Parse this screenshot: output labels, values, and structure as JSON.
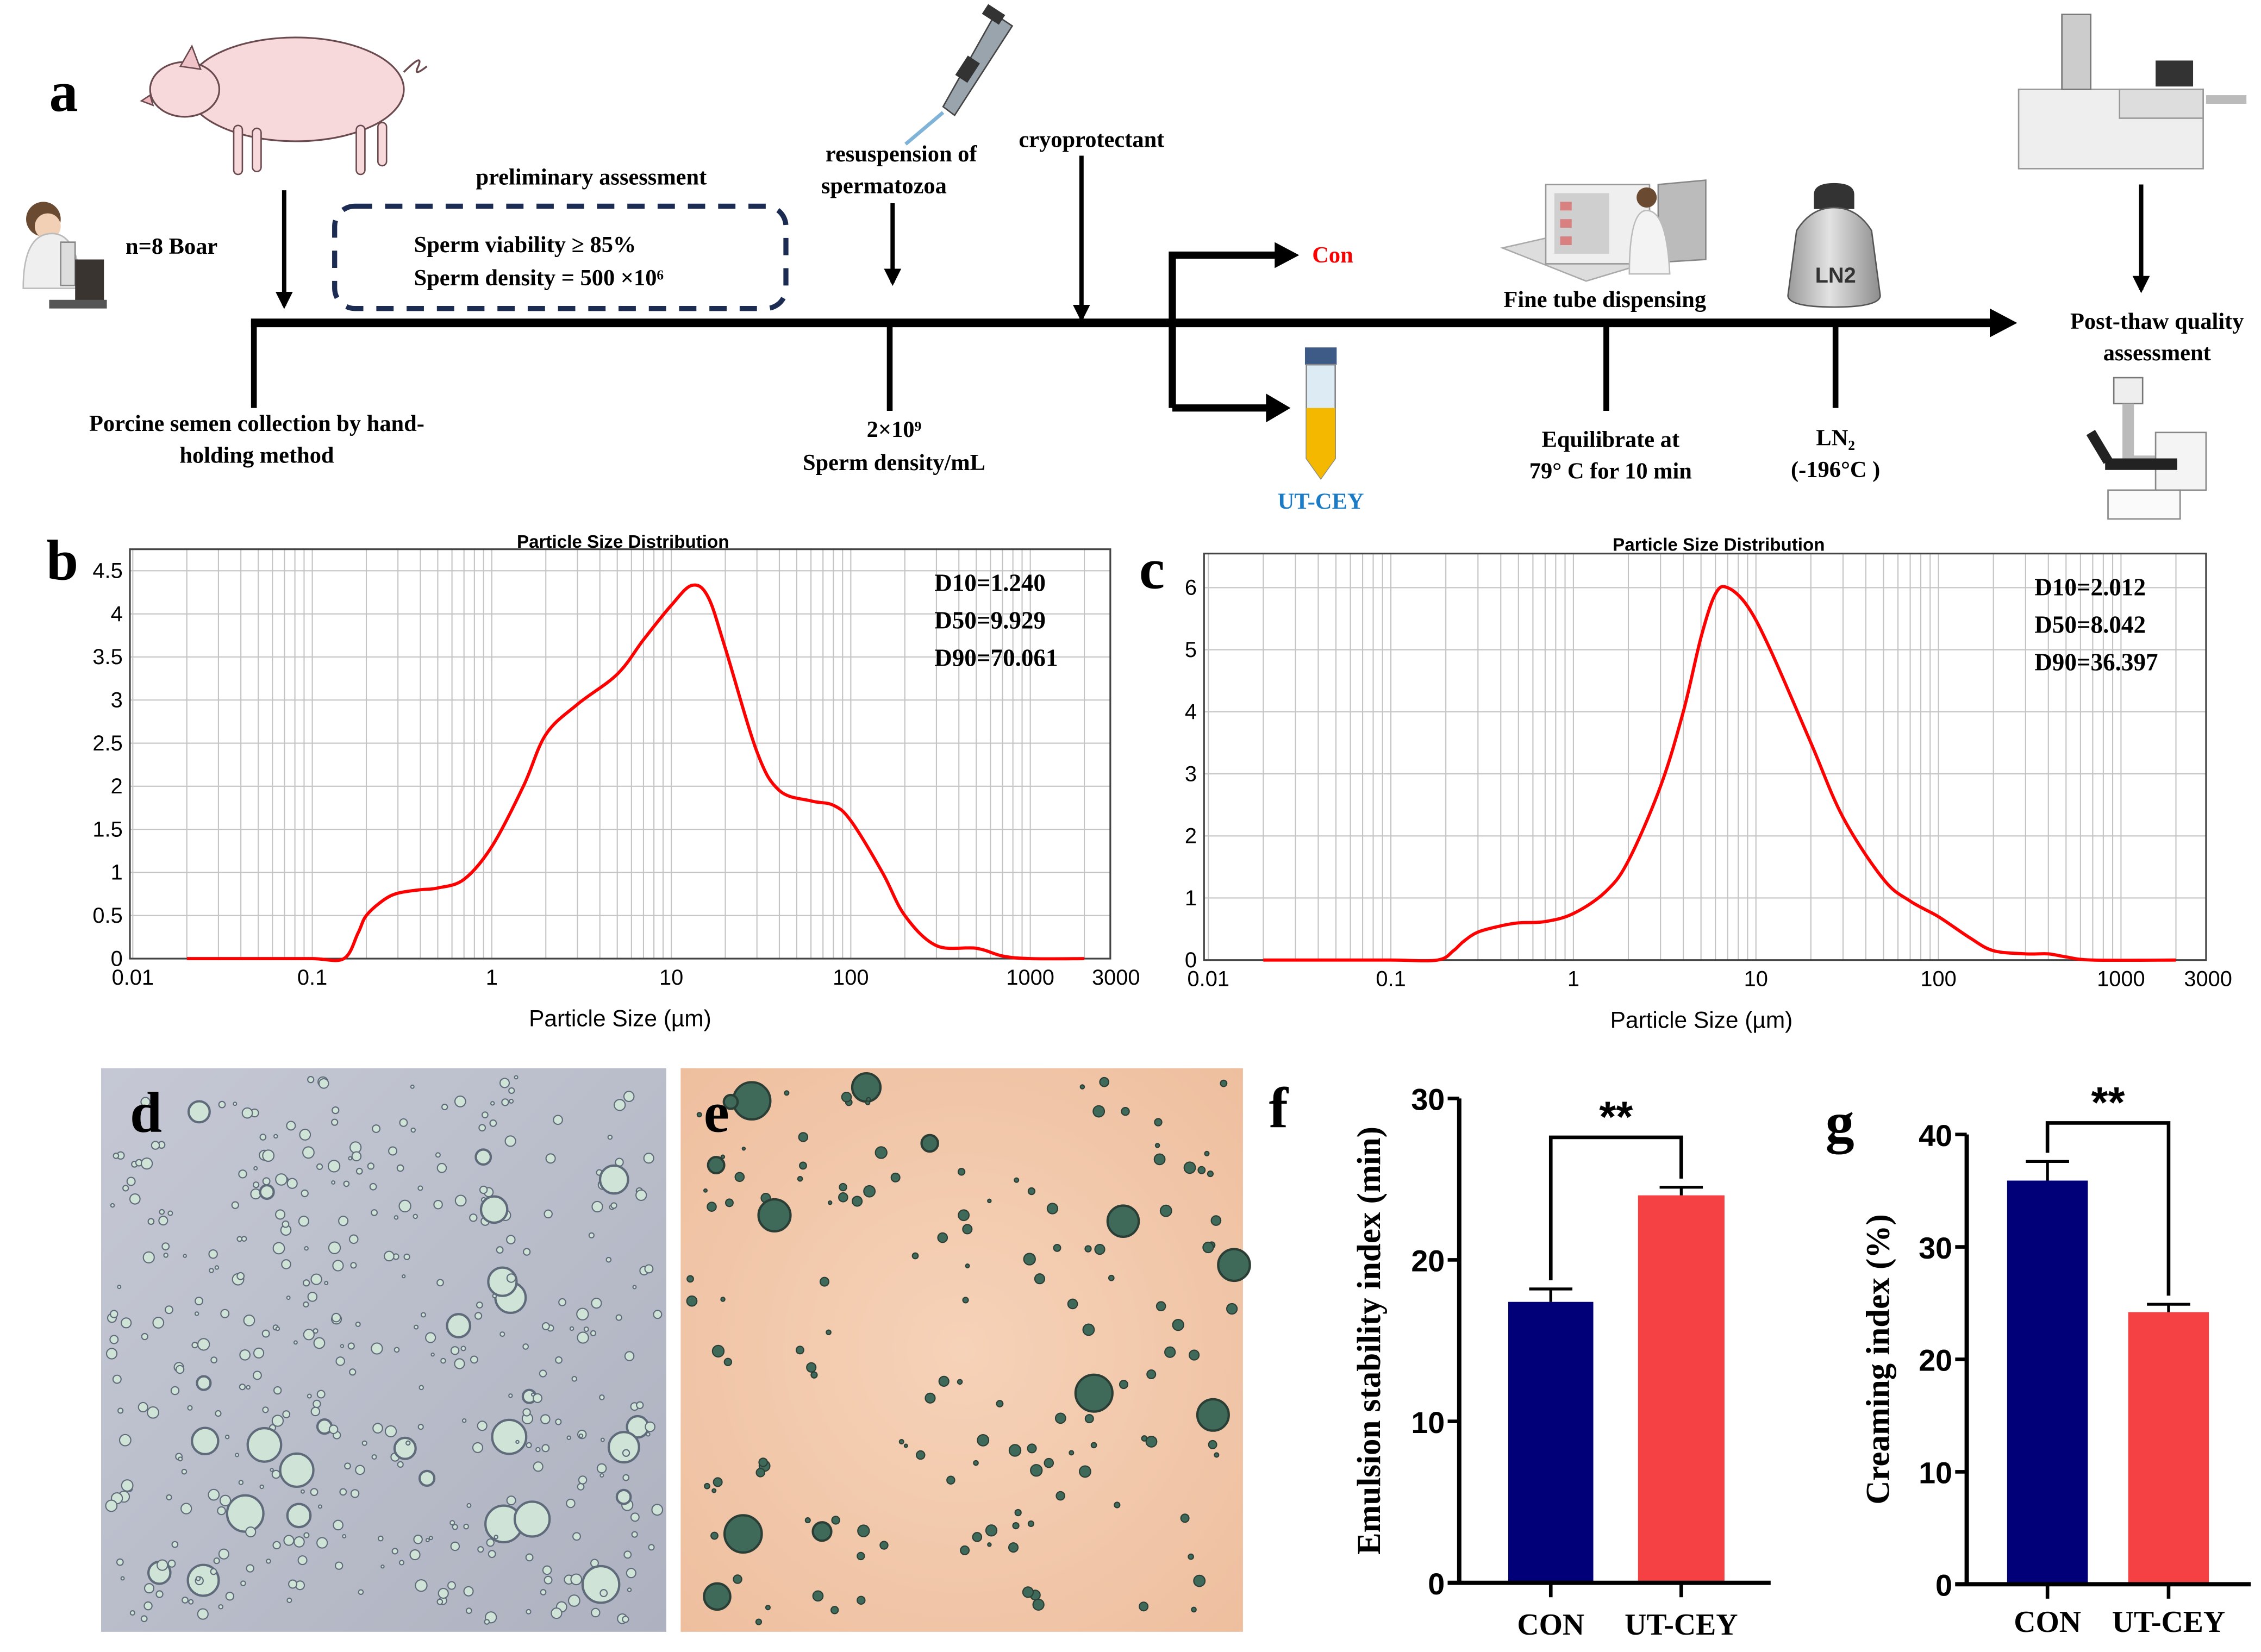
{
  "panel_labels": {
    "a": "a",
    "b": "b",
    "c": "c",
    "d": "d",
    "e": "e",
    "f": "f",
    "g": "g"
  },
  "schematic": {
    "boar_count": "n=8 Boar",
    "preliminary_title": "preliminary assessment",
    "viability": "Sperm viability ≥ 85%",
    "density": "Sperm density = 500 ×10⁶",
    "resuspension_1": "resuspension of",
    "resuspension_2": "spermatozoa",
    "cryoprotectant": "cryoprotectant",
    "collection_1": "Porcine semen collection by hand-",
    "collection_2": "holding method",
    "dilution_1": "2×10⁹",
    "dilution_2": "Sperm density/mL",
    "con": "Con",
    "ut_cey": "UT-CEY",
    "fine_tube": "Fine tube dispensing",
    "equil_1": "Equilibrate at",
    "equil_2": "79°  C for 10 min",
    "ln2_1": "LN₂",
    "ln2_2": "(-196°C )",
    "tank_label": "LN2",
    "postthaw_1": "Post-thaw quality",
    "postthaw_2": "assessment",
    "colors": {
      "con": "#ff0000",
      "ut_cey": "#1a7bc7",
      "box": "#1b2b52"
    }
  },
  "chart_data": [
    {
      "id": "b",
      "type": "line",
      "title": "Particle Size Distribution",
      "xlabel": "Particle Size (µm)",
      "ylabel": "",
      "xscale": "log",
      "xlim": [
        0.01,
        3000
      ],
      "ylim": [
        0,
        4.75
      ],
      "xticks": [
        0.01,
        0.1,
        1,
        10,
        100,
        1000,
        3000
      ],
      "xtick_labels": [
        "0.01",
        "0.1",
        "1",
        "10",
        "100",
        "1000",
        "3000"
      ],
      "yticks": [
        0,
        0.5,
        1,
        1.5,
        2,
        2.5,
        3,
        3.5,
        4,
        4.5
      ],
      "ytick_labels": [
        "0",
        "0.5",
        "1",
        "1.5",
        "2",
        "2.5",
        "3",
        "3.5",
        "4",
        "4.5"
      ],
      "grid": true,
      "color": "#ff0000",
      "annotations": [
        "D10=1.240",
        "D50=9.929",
        "D90=70.061"
      ],
      "x": [
        0.02,
        0.05,
        0.1,
        0.15,
        0.18,
        0.2,
        0.25,
        0.3,
        0.4,
        0.5,
        0.7,
        1,
        1.5,
        2,
        3,
        5,
        7,
        10,
        13,
        16,
        20,
        30,
        40,
        60,
        80,
        100,
        150,
        200,
        300,
        500,
        700,
        1000,
        2000
      ],
      "y": [
        0,
        0,
        0,
        0,
        0.3,
        0.5,
        0.68,
        0.76,
        0.8,
        0.82,
        0.92,
        1.3,
        2.0,
        2.6,
        2.95,
        3.3,
        3.7,
        4.1,
        4.33,
        4.2,
        3.6,
        2.4,
        1.95,
        1.83,
        1.78,
        1.6,
        1.0,
        0.5,
        0.15,
        0.12,
        0.03,
        0,
        0
      ]
    },
    {
      "id": "c",
      "type": "line",
      "title": "Particle Size Distribution",
      "xlabel": "Particle Size (µm)",
      "ylabel": "",
      "xscale": "log",
      "xlim": [
        0.01,
        3000
      ],
      "ylim": [
        0,
        6.55
      ],
      "xticks": [
        0.01,
        0.1,
        1,
        10,
        100,
        1000,
        3000
      ],
      "xtick_labels": [
        "0.01",
        "0.1",
        "1",
        "10",
        "100",
        "1000",
        "3000"
      ],
      "yticks": [
        0,
        1,
        2,
        3,
        4,
        5,
        6
      ],
      "ytick_labels": [
        "0",
        "1",
        "2",
        "3",
        "4",
        "5",
        "6"
      ],
      "grid": true,
      "color": "#ff0000",
      "annotations": [
        "D10=2.012",
        "D50=8.042",
        "D90=36.397"
      ],
      "x": [
        0.02,
        0.05,
        0.1,
        0.18,
        0.22,
        0.25,
        0.3,
        0.4,
        0.5,
        0.7,
        1,
        1.5,
        2,
        3,
        4,
        5,
        6,
        7,
        9,
        12,
        20,
        30,
        50,
        70,
        100,
        150,
        200,
        300,
        400,
        500,
        700,
        2000
      ],
      "y": [
        0,
        0,
        0,
        0,
        0.15,
        0.3,
        0.45,
        0.55,
        0.6,
        0.62,
        0.75,
        1.1,
        1.6,
        2.8,
        4.0,
        5.2,
        5.9,
        6.0,
        5.7,
        5.0,
        3.5,
        2.3,
        1.3,
        0.95,
        0.7,
        0.35,
        0.15,
        0.1,
        0.1,
        0.05,
        0,
        0
      ]
    },
    {
      "id": "f",
      "type": "bar",
      "categories": [
        "CON",
        "UT-CEY"
      ],
      "values": [
        17.4,
        24.0
      ],
      "errors": [
        0.8,
        0.5
      ],
      "colors": [
        "#020079",
        "#f64144"
      ],
      "ylabel": "Emulsion stability index (min)",
      "ylim": [
        0,
        30
      ],
      "yticks": [
        0,
        10,
        20,
        30
      ],
      "ytick_labels": [
        "0",
        "10",
        "20",
        "30"
      ],
      "significance": "**"
    },
    {
      "id": "g",
      "type": "bar",
      "categories": [
        "CON",
        "UT-CEY"
      ],
      "values": [
        35.9,
        24.2
      ],
      "errors": [
        1.7,
        0.7
      ],
      "colors": [
        "#020079",
        "#f64144"
      ],
      "ylabel": "Creaming index (%)",
      "ylim": [
        0,
        40
      ],
      "yticks": [
        0,
        10,
        20,
        30,
        40
      ],
      "ytick_labels": [
        "0",
        "10",
        "20",
        "30",
        "40"
      ],
      "significance": "**"
    }
  ]
}
